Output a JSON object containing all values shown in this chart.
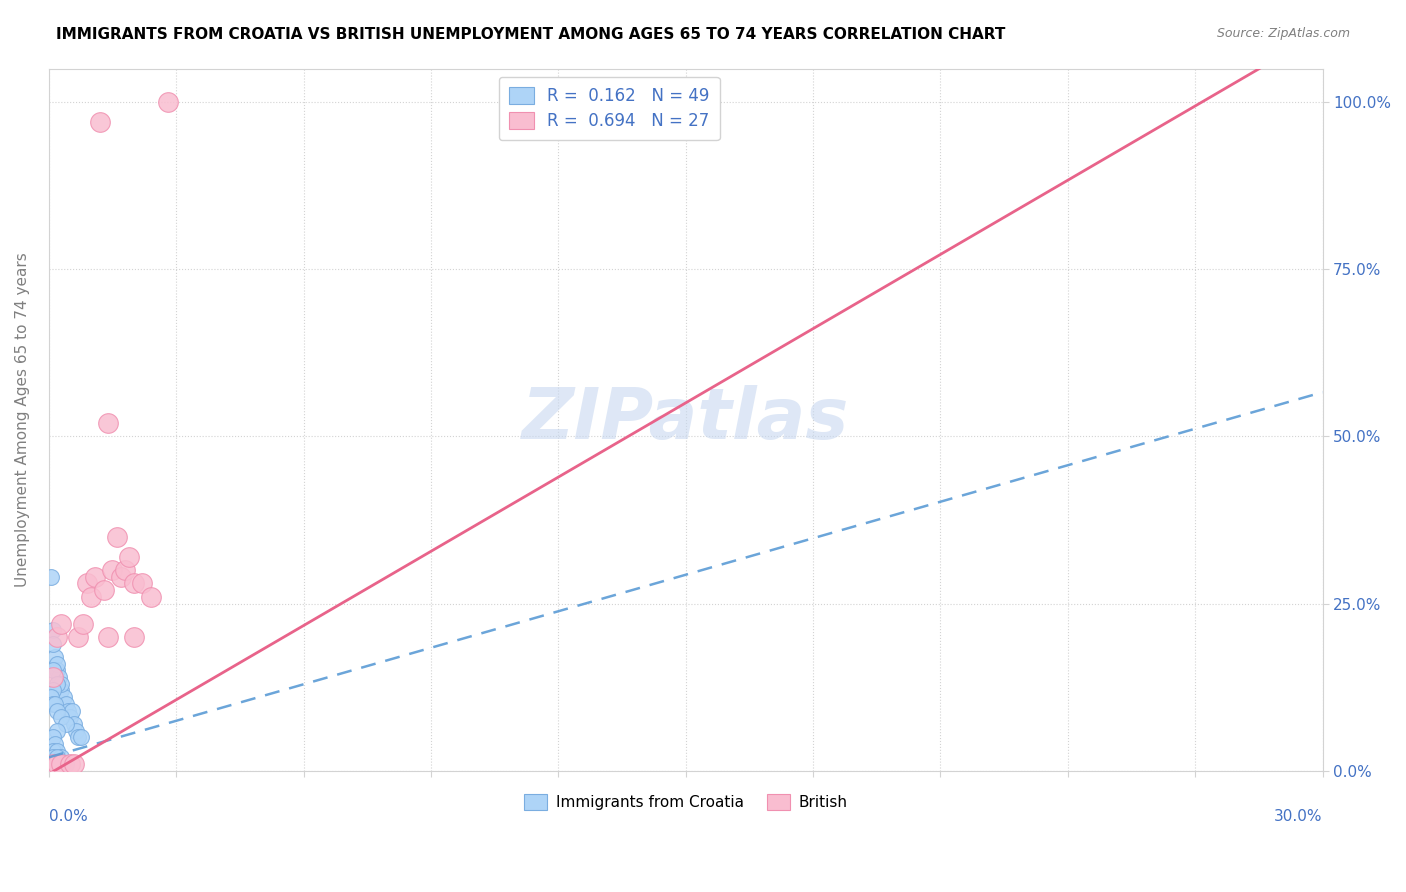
{
  "title": "IMMIGRANTS FROM CROATIA VS BRITISH UNEMPLOYMENT AMONG AGES 65 TO 74 YEARS CORRELATION CHART",
  "source": "Source: ZipAtlas.com",
  "ylabel": "Unemployment Among Ages 65 to 74 years",
  "xlim": [
    0.0,
    0.3
  ],
  "ylim": [
    0.0,
    1.05
  ],
  "ytick_vals": [
    0.0,
    0.25,
    0.5,
    0.75,
    1.0
  ],
  "ytick_labels": [
    "0.0%",
    "25.0%",
    "50.0%",
    "75.0%",
    "100.0%"
  ],
  "legend_label_blue": "Immigrants from Croatia",
  "legend_label_pink": "British",
  "blue_color": "#aed4f7",
  "pink_color": "#f9bdd0",
  "blue_edge_color": "#7aade0",
  "pink_edge_color": "#f090b0",
  "blue_line_color": "#5b9bd5",
  "pink_line_color": "#e8638a",
  "text_blue_color": "#4472c4",
  "watermark": "ZIPatlas",
  "watermark_color": "#c8d8f0",
  "pink_line_slope": 3.7,
  "pink_line_intercept": -0.005,
  "blue_line_slope": 1.82,
  "blue_line_intercept": 0.02,
  "blue_scatter_x": [
    0.0005,
    0.001,
    0.0015,
    0.002,
    0.0025,
    0.003,
    0.0035,
    0.004,
    0.0045,
    0.005,
    0.0055,
    0.006,
    0.0065,
    0.007,
    0.0075,
    0.001,
    0.002,
    0.003,
    0.001,
    0.002,
    0.001,
    0.0005,
    0.001,
    0.0015,
    0.002,
    0.003,
    0.004,
    0.002,
    0.001,
    0.0015,
    0.001,
    0.002,
    0.001,
    0.003,
    0.002,
    0.004,
    0.003,
    0.002,
    0.001,
    0.0005,
    0.0005,
    0.001,
    0.002,
    0.001,
    0.0005,
    0.001,
    0.002,
    0.0005,
    0.0005
  ],
  "blue_scatter_y": [
    0.29,
    0.21,
    0.17,
    0.15,
    0.14,
    0.12,
    0.11,
    0.1,
    0.09,
    0.08,
    0.09,
    0.07,
    0.06,
    0.05,
    0.05,
    0.19,
    0.16,
    0.13,
    0.15,
    0.13,
    0.12,
    0.11,
    0.1,
    0.1,
    0.09,
    0.08,
    0.07,
    0.06,
    0.05,
    0.04,
    0.03,
    0.03,
    0.02,
    0.02,
    0.02,
    0.01,
    0.01,
    0.01,
    0.01,
    0.01,
    0.01,
    0.01,
    0.01,
    0.01,
    0.01,
    0.01,
    0.01,
    0.01,
    0.01
  ],
  "pink_scatter_x": [
    0.001,
    0.002,
    0.003,
    0.005,
    0.006,
    0.007,
    0.008,
    0.009,
    0.01,
    0.011,
    0.012,
    0.013,
    0.014,
    0.015,
    0.016,
    0.017,
    0.018,
    0.019,
    0.02,
    0.022,
    0.024,
    0.028,
    0.001,
    0.002,
    0.003,
    0.014,
    0.02
  ],
  "pink_scatter_y": [
    0.01,
    0.01,
    0.01,
    0.01,
    0.01,
    0.2,
    0.22,
    0.28,
    0.26,
    0.29,
    0.97,
    0.27,
    0.52,
    0.3,
    0.35,
    0.29,
    0.3,
    0.32,
    0.28,
    0.28,
    0.26,
    1.0,
    0.14,
    0.2,
    0.22,
    0.2,
    0.2
  ]
}
